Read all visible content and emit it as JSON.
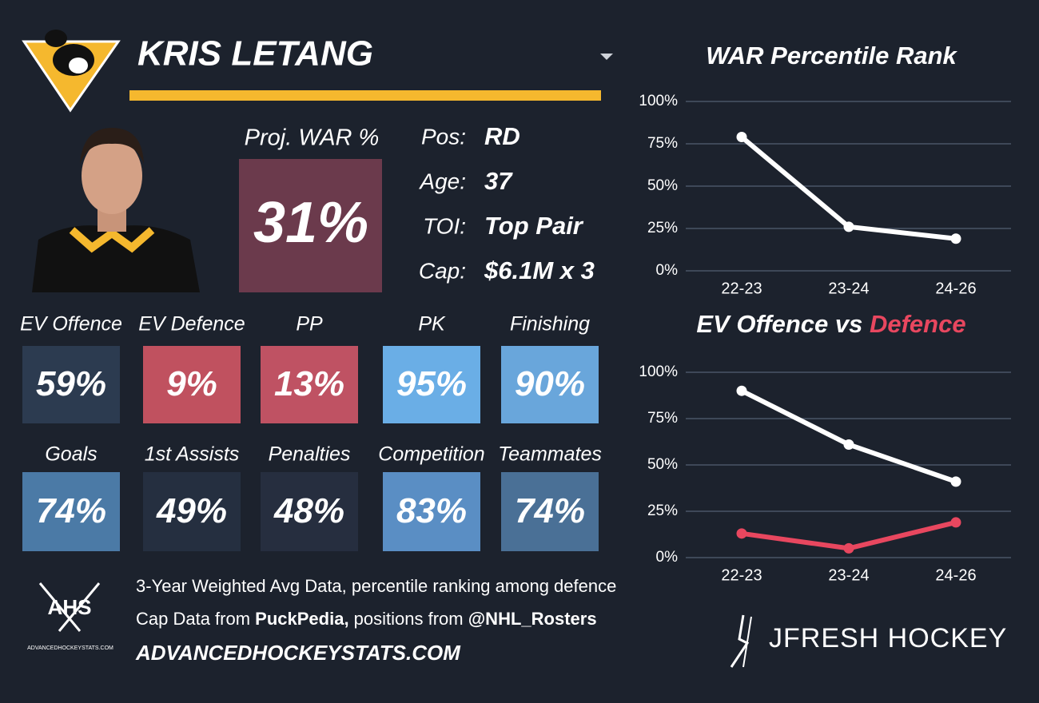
{
  "header": {
    "name": "KRIS LETANG"
  },
  "projection": {
    "label": "Proj. WAR %",
    "value": "31%",
    "color": "#6b3a4c"
  },
  "info": [
    {
      "label": "Pos:",
      "value": "RD"
    },
    {
      "label": "Age:",
      "value": "37"
    },
    {
      "label": "TOI:",
      "value": "Top Pair"
    },
    {
      "label": "Cap:",
      "value": "$6.1M x 3"
    }
  ],
  "tiles": [
    {
      "label": "EV Offence",
      "value": "59%",
      "color": "#2c3b50"
    },
    {
      "label": "EV Defence",
      "value": "9%",
      "color": "#c0515f"
    },
    {
      "label": "PP",
      "value": "13%",
      "color": "#bf5263"
    },
    {
      "label": "PK",
      "value": "95%",
      "color": "#6aaee6"
    },
    {
      "label": "Finishing",
      "value": "90%",
      "color": "#69a6db"
    },
    {
      "label": "Goals",
      "value": "74%",
      "color": "#4b7aa6"
    },
    {
      "label": "1st Assists",
      "value": "49%",
      "color": "#252f40"
    },
    {
      "label": "Penalties",
      "value": "48%",
      "color": "#262e3f"
    },
    {
      "label": "Competition",
      "value": "83%",
      "color": "#5a8ec4"
    },
    {
      "label": "Teammates",
      "value": "74%",
      "color": "#4a7096"
    }
  ],
  "chart_data": [
    {
      "type": "line",
      "title": "WAR Percentile Rank",
      "categories": [
        "22-23",
        "23-24",
        "24-26"
      ],
      "series": [
        {
          "color": "#ffffff",
          "values": [
            79,
            26,
            19
          ]
        }
      ],
      "ylim": [
        0,
        100
      ],
      "yticks": [
        {
          "value": 0,
          "label": "0%"
        },
        {
          "value": 25,
          "label": "25%"
        },
        {
          "value": 50,
          "label": "50%"
        },
        {
          "value": 75,
          "label": "75%"
        },
        {
          "value": 100,
          "label": "100%"
        }
      ],
      "grid": true
    },
    {
      "type": "line",
      "title": "EV Offence vs",
      "title_highlight": "Defence",
      "title_highlight_color": "#e8475f",
      "categories": [
        "22-23",
        "23-24",
        "24-26"
      ],
      "series": [
        {
          "color": "#ffffff",
          "values": [
            90,
            61,
            41
          ]
        },
        {
          "color": "#e8475f",
          "values": [
            13,
            5,
            19
          ]
        }
      ],
      "ylim": [
        0,
        100
      ],
      "yticks": [
        {
          "value": 0,
          "label": "0%"
        },
        {
          "value": 25,
          "label": "25%"
        },
        {
          "value": 50,
          "label": "50%"
        },
        {
          "value": 75,
          "label": "75%"
        },
        {
          "value": 100,
          "label": "100%"
        }
      ],
      "grid": true
    }
  ],
  "footer": {
    "note": "3-Year Weighted Avg Data, percentile ranking among defence",
    "source_parts": [
      "Cap Data from ",
      "PuckPedia,",
      " positions from ",
      "@NHL_Rosters"
    ],
    "site": "ADVANCEDHOCKEYSTATS.COM",
    "logo_text": "AHS",
    "logo_caption": "ADVANCEDHOCKEYSTATS.COM",
    "brand": "JFRESH HOCKEY"
  }
}
